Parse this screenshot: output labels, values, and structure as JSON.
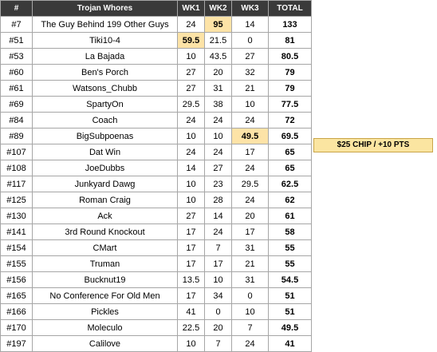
{
  "headers": [
    "#",
    "Trojan Whores",
    "WK1",
    "WK2",
    "WK3",
    "TOTAL"
  ],
  "rows": [
    {
      "rank": "#7",
      "team": "The Guy Behind 199 Other Guys",
      "wk1": "24",
      "wk2": "95",
      "wk3": "14",
      "total": "133"
    },
    {
      "rank": "#51",
      "team": "Tiki10-4",
      "wk1": "59.5",
      "wk2": "21.5",
      "wk3": "0",
      "total": "81"
    },
    {
      "rank": "#53",
      "team": "La Bajada",
      "wk1": "10",
      "wk2": "43.5",
      "wk3": "27",
      "total": "80.5"
    },
    {
      "rank": "#60",
      "team": "Ben's Porch",
      "wk1": "27",
      "wk2": "20",
      "wk3": "32",
      "total": "79"
    },
    {
      "rank": "#61",
      "team": "Watsons_Chubb",
      "wk1": "27",
      "wk2": "31",
      "wk3": "21",
      "total": "79"
    },
    {
      "rank": "#69",
      "team": "SpartyOn",
      "wk1": "29.5",
      "wk2": "38",
      "wk3": "10",
      "total": "77.5"
    },
    {
      "rank": "#84",
      "team": "Coach",
      "wk1": "24",
      "wk2": "24",
      "wk3": "24",
      "total": "72"
    },
    {
      "rank": "#89",
      "team": "BigSubpoenas",
      "wk1": "10",
      "wk2": "10",
      "wk3": "49.5",
      "total": "69.5"
    },
    {
      "rank": "#107",
      "team": "Dat Win",
      "wk1": "24",
      "wk2": "24",
      "wk3": "17",
      "total": "65"
    },
    {
      "rank": "#108",
      "team": "JoeDubbs",
      "wk1": "14",
      "wk2": "27",
      "wk3": "24",
      "total": "65"
    },
    {
      "rank": "#117",
      "team": "Junkyard Dawg",
      "wk1": "10",
      "wk2": "23",
      "wk3": "29.5",
      "total": "62.5"
    },
    {
      "rank": "#125",
      "team": "Roman Craig",
      "wk1": "10",
      "wk2": "28",
      "wk3": "24",
      "total": "62"
    },
    {
      "rank": "#130",
      "team": "Ack",
      "wk1": "27",
      "wk2": "14",
      "wk3": "20",
      "total": "61"
    },
    {
      "rank": "#141",
      "team": "3rd Round Knockout",
      "wk1": "17",
      "wk2": "24",
      "wk3": "17",
      "total": "58"
    },
    {
      "rank": "#154",
      "team": "CMart",
      "wk1": "17",
      "wk2": "7",
      "wk3": "31",
      "total": "55"
    },
    {
      "rank": "#155",
      "team": "Truman",
      "wk1": "17",
      "wk2": "17",
      "wk3": "21",
      "total": "55"
    },
    {
      "rank": "#156",
      "team": "Bucknut19",
      "wk1": "13.5",
      "wk2": "10",
      "wk3": "31",
      "total": "54.5"
    },
    {
      "rank": "#165",
      "team": "No Conference For Old Men",
      "wk1": "17",
      "wk2": "34",
      "wk3": "0",
      "total": "51"
    },
    {
      "rank": "#166",
      "team": "Pickles",
      "wk1": "41",
      "wk2": "0",
      "wk3": "10",
      "total": "51"
    },
    {
      "rank": "#170",
      "team": "Moleculo",
      "wk1": "22.5",
      "wk2": "20",
      "wk3": "7",
      "total": "49.5"
    },
    {
      "rank": "#197",
      "team": "Calilove",
      "wk1": "10",
      "wk2": "7",
      "wk3": "24",
      "total": "41"
    }
  ],
  "highlights": [
    {
      "row": 1,
      "col": "wk1"
    },
    {
      "row": 0,
      "col": "wk2"
    },
    {
      "row": 7,
      "col": "wk3"
    }
  ],
  "prize_note": "$25 CHIP / +10 PTS",
  "colors": {
    "header_bg": "#3a3a3a",
    "highlight": "#fde3a7",
    "prize_bg": "#fbe5a1"
  }
}
